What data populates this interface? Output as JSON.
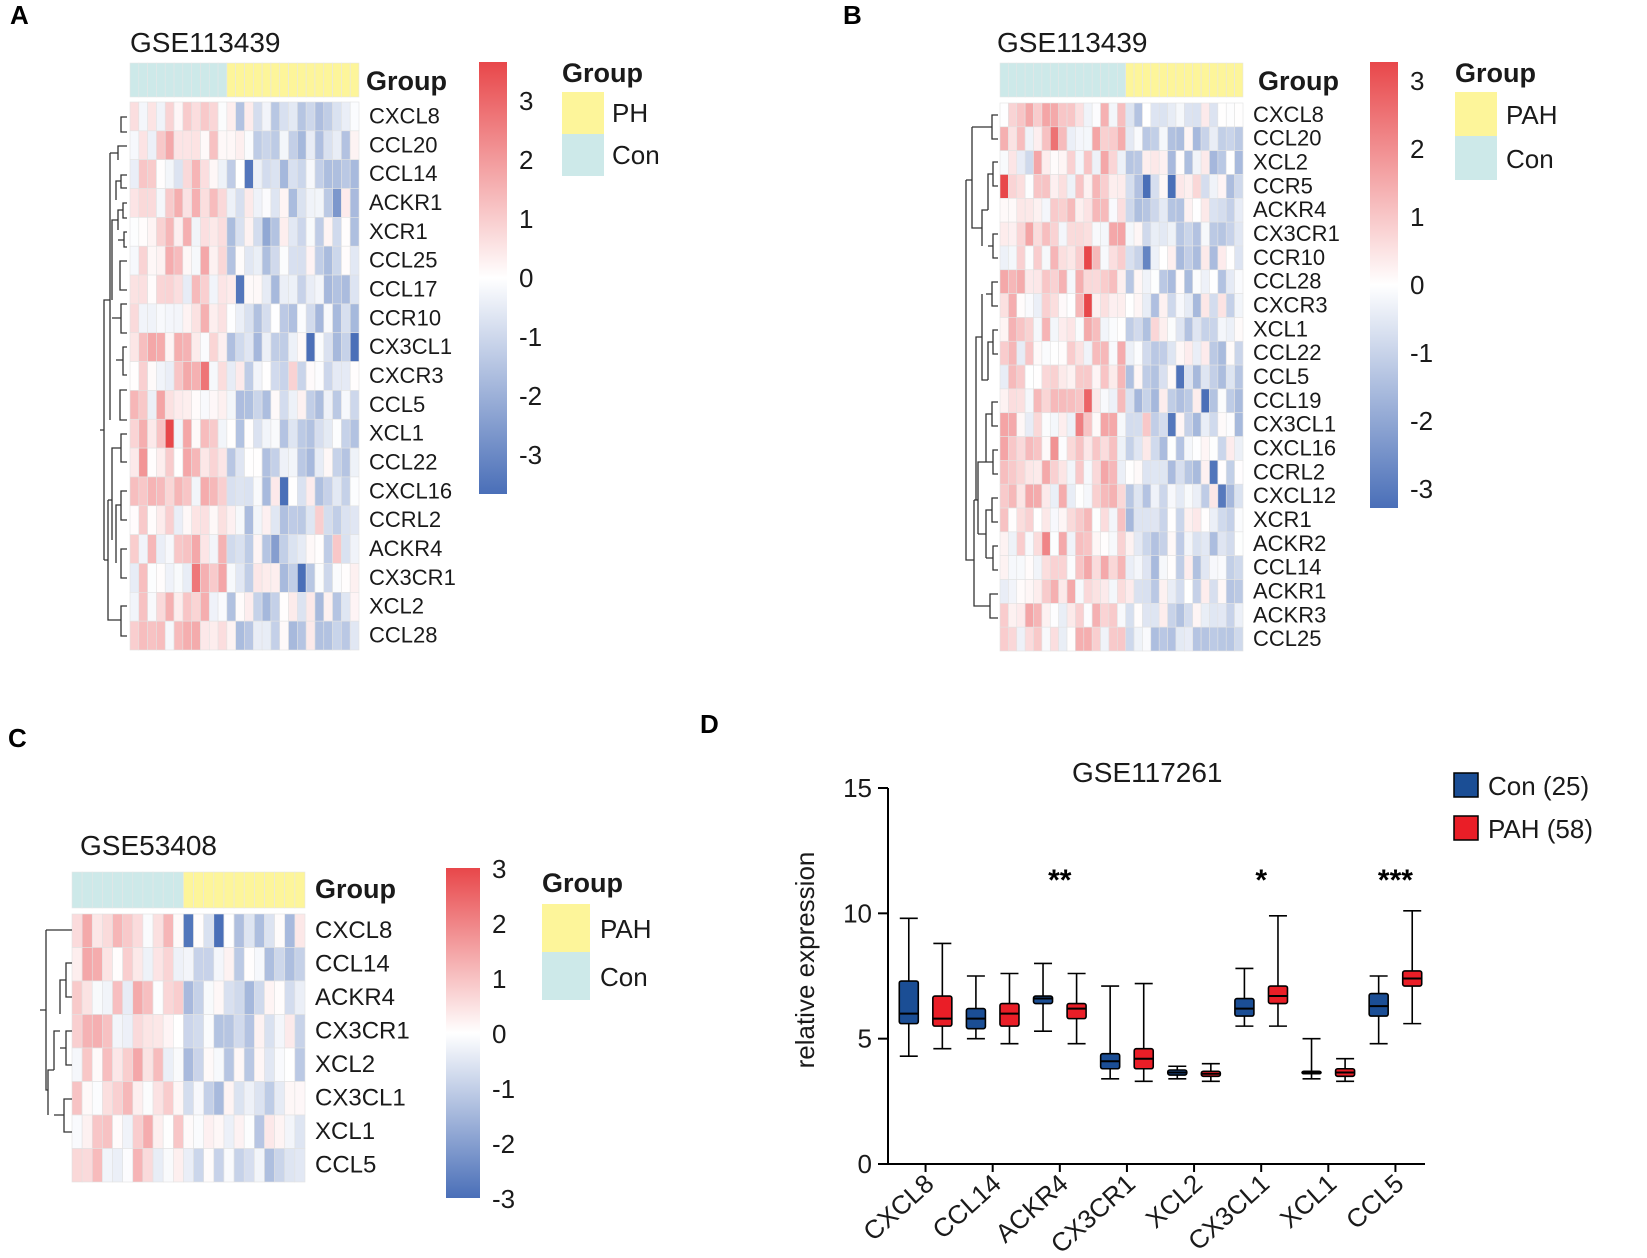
{
  "colors": {
    "high": "#e8474a",
    "mid": "#ffffff",
    "low": "#4a6fb8",
    "pah_group": "#fdf59a",
    "con_group": "#cde9e9",
    "con_box": "#1b4e95",
    "pah_box": "#ea1e27"
  },
  "panels": {
    "A": {
      "label": "A",
      "title": "GSE113439",
      "group_header": "Group",
      "legend_title": "Group",
      "legend_items": [
        "PH",
        "Con"
      ],
      "n_con": 11,
      "n_case": 15,
      "genes": [
        "CXCL8",
        "CCL20",
        "CCL14",
        "ACKR1",
        "XCR1",
        "CCL25",
        "CCL17",
        "CCR10",
        "CX3CL1",
        "CXCR3",
        "CCL5",
        "XCL1",
        "CCL22",
        "CXCL16",
        "CCRL2",
        "ACKR4",
        "CX3CR1",
        "XCL2",
        "CCL28"
      ],
      "scale_labels": [
        "3",
        "2",
        "1",
        "0",
        "-1",
        "-2",
        "-3"
      ]
    },
    "B": {
      "label": "B",
      "title": "GSE113439",
      "group_header": "Group",
      "legend_title": "Group",
      "legend_items": [
        "PAH",
        "Con"
      ],
      "n_con": 15,
      "n_case": 14,
      "genes": [
        "CXCL8",
        "CCL20",
        "XCL2",
        "CCR5",
        "ACKR4",
        "CX3CR1",
        "CCR10",
        "CCL28",
        "CXCR3",
        "XCL1",
        "CCL22",
        "CCL5",
        "CCL19",
        "CX3CL1",
        "CXCL16",
        "CCRL2",
        "CXCL12",
        "XCR1",
        "ACKR2",
        "CCL14",
        "ACKR1",
        "ACKR3",
        "CCL25"
      ],
      "scale_labels": [
        "3",
        "2",
        "1",
        "0",
        "-1",
        "-2",
        "-3"
      ]
    },
    "C": {
      "label": "C",
      "title": "GSE53408",
      "group_header": "Group",
      "legend_title": "Group",
      "legend_items": [
        "PAH",
        "Con"
      ],
      "n_con": 11,
      "n_case": 12,
      "genes": [
        "CXCL8",
        "CCL14",
        "ACKR4",
        "CX3CR1",
        "XCL2",
        "CX3CL1",
        "XCL1",
        "CCL5"
      ],
      "scale_labels": [
        "3",
        "2",
        "1",
        "0",
        "-1",
        "-2",
        "-3"
      ]
    }
  },
  "chart_data": {
    "type": "box",
    "label": "D",
    "title": "GSE117261",
    "ylabel": "relative expression",
    "xlabel": "",
    "ylim": [
      0,
      15
    ],
    "yticks": [
      0,
      5,
      10,
      15
    ],
    "categories": [
      "CXCL8",
      "CCL14",
      "ACKR4",
      "CX3CR1",
      "XCL2",
      "CX3CL1",
      "XCL1",
      "CCL5"
    ],
    "significance": [
      "",
      "",
      "**",
      "",
      "",
      "*",
      "",
      "***"
    ],
    "legend": [
      "Con (25)",
      "PAH (58)"
    ],
    "series": [
      {
        "name": "Con (25)",
        "boxes": [
          {
            "min": 4.3,
            "q1": 5.6,
            "median": 6.0,
            "q3": 7.3,
            "max": 9.8
          },
          {
            "min": 5.0,
            "q1": 5.4,
            "median": 5.8,
            "q3": 6.2,
            "max": 7.5
          },
          {
            "min": 5.3,
            "q1": 6.4,
            "median": 6.6,
            "q3": 6.7,
            "max": 8.0
          },
          {
            "min": 3.4,
            "q1": 3.8,
            "median": 4.1,
            "q3": 4.4,
            "max": 7.1
          },
          {
            "min": 3.4,
            "q1": 3.55,
            "median": 3.65,
            "q3": 3.75,
            "max": 3.9
          },
          {
            "min": 5.5,
            "q1": 5.9,
            "median": 6.2,
            "q3": 6.6,
            "max": 7.8
          },
          {
            "min": 3.4,
            "q1": 3.6,
            "median": 3.65,
            "q3": 3.7,
            "max": 5.0
          },
          {
            "min": 4.8,
            "q1": 5.9,
            "median": 6.3,
            "q3": 6.8,
            "max": 7.5
          }
        ]
      },
      {
        "name": "PAH (58)",
        "boxes": [
          {
            "min": 4.6,
            "q1": 5.5,
            "median": 5.8,
            "q3": 6.7,
            "max": 8.8
          },
          {
            "min": 4.8,
            "q1": 5.5,
            "median": 6.0,
            "q3": 6.4,
            "max": 7.6
          },
          {
            "min": 4.8,
            "q1": 5.8,
            "median": 6.2,
            "q3": 6.4,
            "max": 7.6
          },
          {
            "min": 3.3,
            "q1": 3.8,
            "median": 4.2,
            "q3": 4.6,
            "max": 7.2
          },
          {
            "min": 3.3,
            "q1": 3.5,
            "median": 3.6,
            "q3": 3.7,
            "max": 4.0
          },
          {
            "min": 5.5,
            "q1": 6.4,
            "median": 6.7,
            "q3": 7.1,
            "max": 9.9
          },
          {
            "min": 3.3,
            "q1": 3.5,
            "median": 3.65,
            "q3": 3.8,
            "max": 4.2
          },
          {
            "min": 5.6,
            "q1": 7.1,
            "median": 7.4,
            "q3": 7.7,
            "max": 10.1
          }
        ]
      }
    ]
  }
}
